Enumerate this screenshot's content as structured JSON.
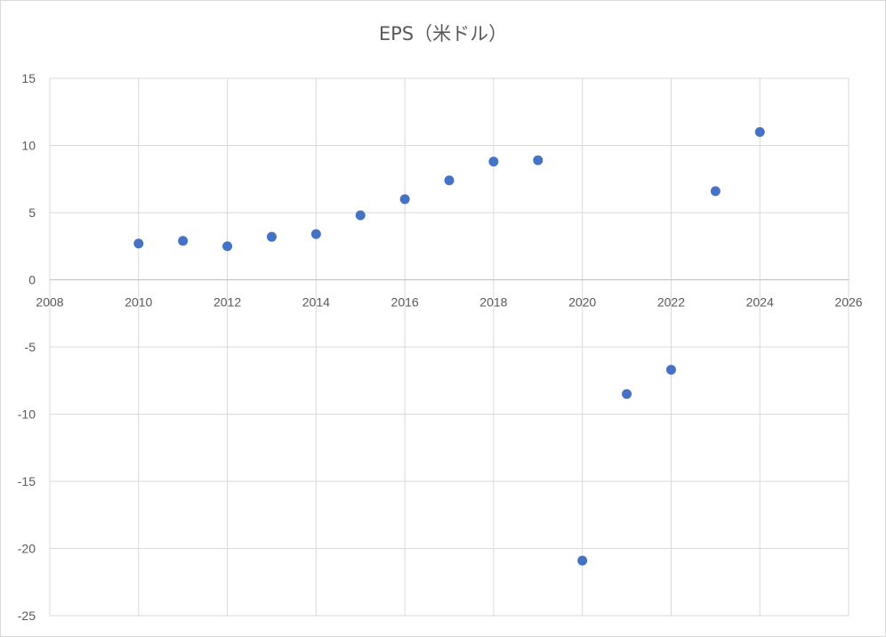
{
  "chart_data": {
    "type": "scatter",
    "title": "EPS（米ドル）",
    "xlabel": "",
    "ylabel": "",
    "xlim": [
      2008,
      2026
    ],
    "ylim": [
      -25,
      15
    ],
    "x_ticks": [
      2008,
      2010,
      2012,
      2014,
      2016,
      2018,
      2020,
      2022,
      2024,
      2026
    ],
    "y_ticks": [
      15,
      10,
      5,
      0,
      -5,
      -10,
      -15,
      -20,
      -25
    ],
    "grid": true,
    "legend": "none",
    "series": [
      {
        "color": "#4472c4",
        "points": [
          {
            "x": 2010,
            "y": 2.7
          },
          {
            "x": 2011,
            "y": 2.9
          },
          {
            "x": 2012,
            "y": 2.5
          },
          {
            "x": 2013,
            "y": 3.2
          },
          {
            "x": 2014,
            "y": 3.4
          },
          {
            "x": 2015,
            "y": 4.8
          },
          {
            "x": 2016,
            "y": 6.0
          },
          {
            "x": 2017,
            "y": 7.4
          },
          {
            "x": 2018,
            "y": 8.8
          },
          {
            "x": 2019,
            "y": 8.9
          },
          {
            "x": 2020,
            "y": -20.9
          },
          {
            "x": 2021,
            "y": -8.5
          },
          {
            "x": 2022,
            "y": -6.7
          },
          {
            "x": 2023,
            "y": 6.6
          },
          {
            "x": 2024,
            "y": 11.0
          }
        ]
      }
    ]
  }
}
